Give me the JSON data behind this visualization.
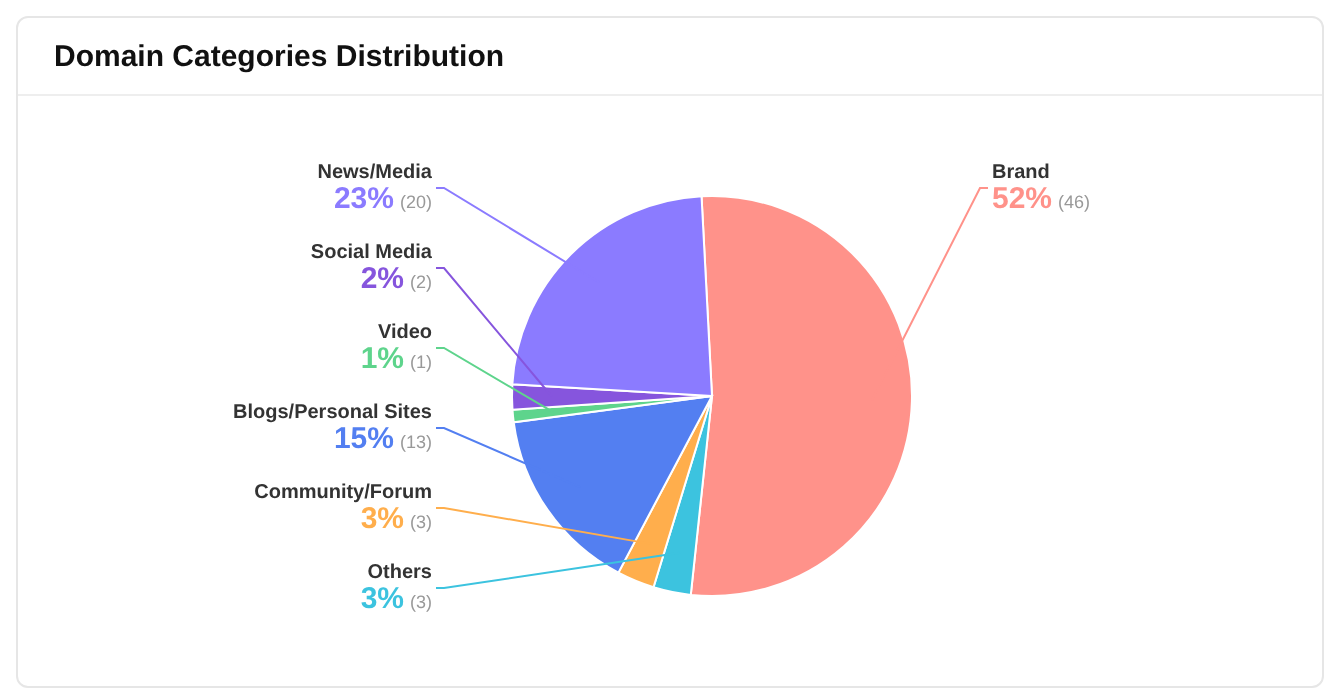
{
  "chart_data": {
    "type": "pie",
    "title": "Domain Categories Distribution",
    "categories": [
      "Brand",
      "Others",
      "Community/Forum",
      "Blogs/Personal Sites",
      "Video",
      "Social Media",
      "News/Media"
    ],
    "values": [
      52,
      3,
      3,
      15,
      1,
      2,
      23
    ],
    "value_labels": [
      "52% (46)",
      "3% (3)",
      "3% (3)",
      "15% (13)",
      "1% (1)",
      "2% (2)",
      "23% (20)"
    ],
    "colors": [
      "#ff928a",
      "#3cc3df",
      "#ffae4c",
      "#537ff1",
      "#5ed48c",
      "#8655dd",
      "#8b7bff"
    ]
  }
}
